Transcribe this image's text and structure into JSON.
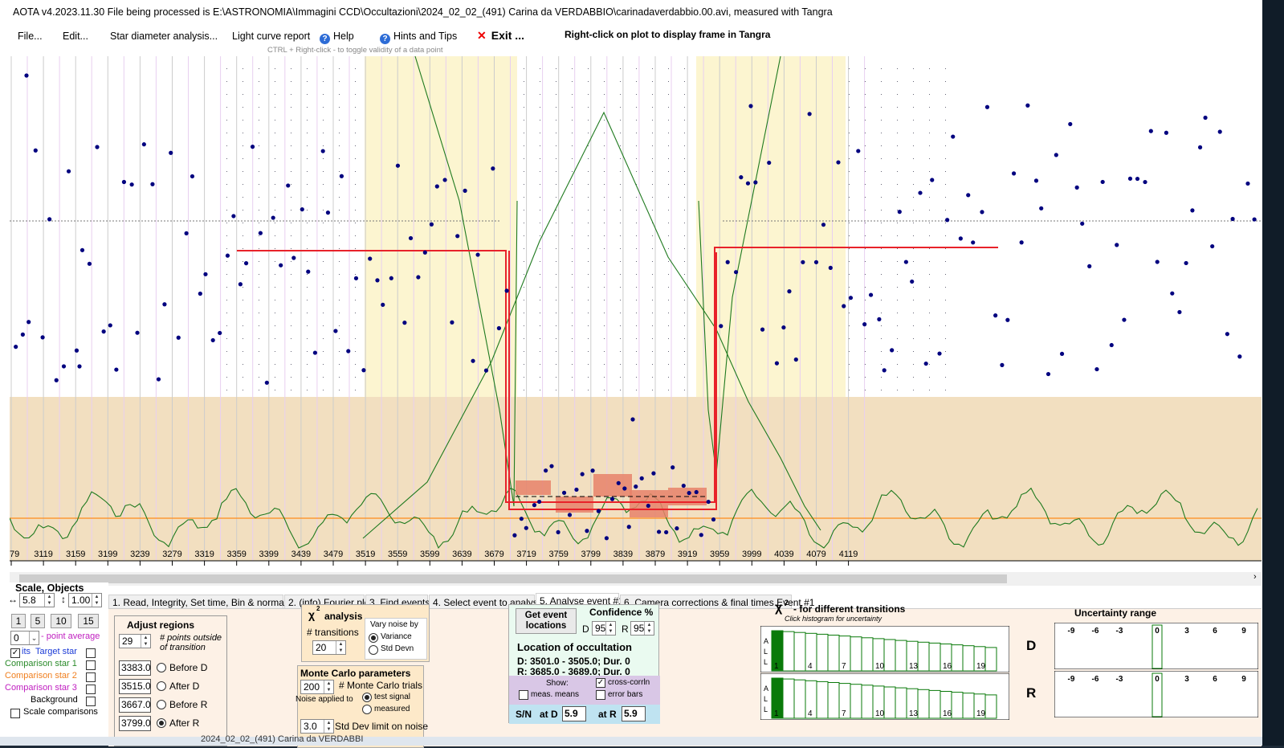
{
  "title": "AOTA v4.2023.11.30    File being processed is E:\\ASTRONOMIA\\Immagini CCD\\Occultazioni\\2024_02_02_(491) Carina da VERDABBIO\\carinadaverdabbio.00.avi, measured with Tangra",
  "menu": {
    "file": "File...",
    "edit": "Edit...",
    "star_diameter": "Star diameter analysis...",
    "light_curve": "Light curve report",
    "help": "Help",
    "hints": "Hints and Tips",
    "exit": "Exit ...",
    "right_click_hint": "Right-click on plot to display frame in Tangra",
    "ctrl_hint": "CTRL + Right-click  -  to toggle validity of a data point"
  },
  "plot": {
    "x_ticks": [
      "79",
      "3119",
      "3159",
      "3199",
      "3239",
      "3279",
      "3319",
      "3359",
      "3399",
      "3439",
      "3479",
      "3519",
      "3559",
      "3599",
      "3639",
      "3679",
      "3719",
      "3759",
      "3799",
      "3839",
      "3879",
      "3919",
      "3959",
      "3999",
      "4039",
      "4079",
      "4119"
    ],
    "colors": {
      "points": "#00007f",
      "model": "#e8222a",
      "chi": "#1f7a1f",
      "orange_line": "#ff8c1a",
      "shade_yellow": "#fcf5d0",
      "shade_tan": "#f2dfc0",
      "box": "#e8826a"
    },
    "series_y_top": [
      [
        250,
        95
      ],
      [
        250,
        282
      ],
      [
        251,
        235
      ],
      [
        252,
        204
      ],
      [
        254,
        368
      ],
      [
        255,
        345
      ],
      [
        256,
        283
      ],
      [
        257,
        387
      ],
      [
        258,
        236
      ],
      [
        259,
        455
      ],
      [
        260,
        296
      ],
      [
        261,
        245
      ],
      [
        262,
        251
      ],
      [
        263,
        324
      ],
      [
        264,
        197
      ],
      [
        265,
        185
      ],
      [
        266,
        215
      ],
      [
        267,
        180
      ],
      [
        268,
        321
      ],
      [
        269,
        270
      ],
      [
        270,
        412
      ],
      [
        271,
        243
      ],
      [
        272,
        264
      ],
      [
        273,
        352
      ],
      [
        274,
        351
      ],
      [
        275,
        257
      ],
      [
        276,
        236
      ],
      [
        277,
        345
      ],
      [
        278,
        357
      ],
      [
        279,
        300
      ],
      [
        280,
        205
      ]
    ]
  },
  "tabs": [
    "1.  Read, Integrity, Set time, Bin & normalise",
    "2. (info)  Fourier plot",
    "3. Find events",
    "4. Select event to analyse",
    "5. Analyse event #1",
    "6. Camera corrections & final times Event #1"
  ],
  "left": {
    "scale_objects": "Scale,  Objects",
    "scale_x": "5.8",
    "scale_y": "1.00",
    "buttons": [
      "1",
      "5",
      "10",
      "15"
    ],
    "point_avg_value": "0",
    "point_avg_label": "- point average",
    "target_star": "Target star",
    "target_prefix": "its",
    "comp1": "Comparison star 1",
    "comp2": "Comparison star 2",
    "comp3": "Comparison star 3",
    "background": "Background",
    "scale_comparisons": "Scale comparisons"
  },
  "adjust": {
    "title": "Adjust regions",
    "points": "29",
    "points_label": "# points outside of transition",
    "values": [
      "3383.0",
      "3515.0",
      "3667.0",
      "3799.0"
    ],
    "labels": [
      "Before D",
      "After D",
      "Before R",
      "After R"
    ]
  },
  "chi": {
    "title": "analysis",
    "chi_sym": "χ",
    "transitions_label": "# transitions",
    "transitions": "20",
    "vary_noise": "Vary noise by",
    "variance": "Variance",
    "std_devn": "Std Devn"
  },
  "monte": {
    "title": "Monte Carlo parameters",
    "trials": "200",
    "trials_label": "# Monte Carlo trials",
    "noise_applied": "Noise applied to",
    "test_signal": "test signal",
    "measured": "measured",
    "stddev": "3.0",
    "stddev_label": "Std Dev limit on noise"
  },
  "event": {
    "get_event": "Get event locations",
    "confidence": "Confidence %",
    "d_label": "D",
    "d_val": "95",
    "r_label": "R",
    "r_val": "95",
    "location_title": "Location of occultation",
    "d_line": "D: 3501.0 - 3505.0; Dur. 0",
    "r_line": "R: 3685.0 - 3689.0; Dur. 0",
    "show": "Show:",
    "meas_means": "meas. means",
    "cross_corr": "cross-corrln",
    "error_bars": "error bars",
    "sn": "S/N",
    "at_d": "at D",
    "at_d_val": "5.9",
    "at_r": "at R",
    "at_r_val": "5.9"
  },
  "chi_hist": {
    "title": "- for different transitions",
    "chi_sym": "χ",
    "subtitle": "Click histogram for uncertainty",
    "all": [
      "A",
      "L",
      "L"
    ],
    "ticks": [
      "1",
      "4",
      "7",
      "10",
      "13",
      "16",
      "19"
    ],
    "d": "D",
    "r": "R"
  },
  "uncertainty": {
    "title": "Uncertainty range",
    "ticks": [
      "-9",
      "-6",
      "-3",
      "0",
      "3",
      "6",
      "9"
    ]
  },
  "taskbar": {
    "text": "2024_02_02_(491) Carina da VERDABBI"
  }
}
